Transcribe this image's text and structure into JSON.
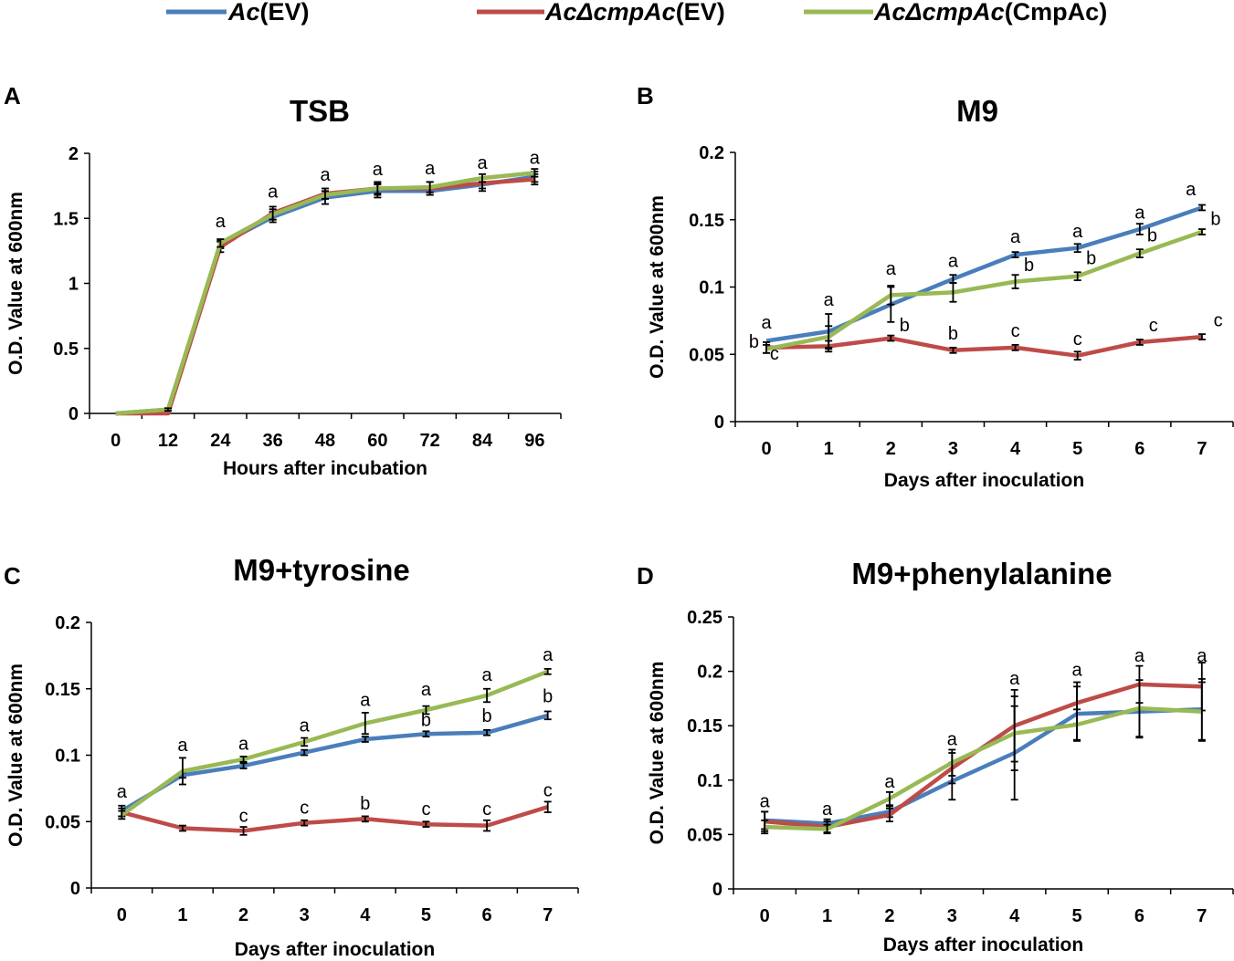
{
  "colors": {
    "blue": "#4a7ebb",
    "red": "#be4b48",
    "green": "#98b954"
  },
  "legend": [
    {
      "prefix": "Ac",
      "suffix": "(EV)",
      "color": "#4a7ebb"
    },
    {
      "prefix": "AcΔcmpAc",
      "suffix": "(EV)",
      "color": "#be4b48"
    },
    {
      "prefix": "AcΔcmpAc",
      "suffix": "(CmpAc)",
      "color": "#98b954"
    }
  ],
  "chart_data": [
    {
      "panel": "A",
      "title": "TSB",
      "type": "line",
      "xlabel": "Hours after incubation",
      "ylabel": "O.D. Value at 600nm",
      "x": [
        0,
        12,
        24,
        36,
        48,
        60,
        72,
        84,
        96
      ],
      "x_ticks": [
        "0",
        "12",
        "24",
        "36",
        "48",
        "60",
        "72",
        "84",
        "96"
      ],
      "ylim": [
        0,
        2
      ],
      "y_ticks": [
        0,
        0.5,
        1,
        1.5,
        2
      ],
      "y_tick_labels": [
        "0",
        "0.5",
        "1",
        "1.5",
        "2"
      ],
      "series": [
        {
          "name": "Ac(EV)",
          "color": "#4a7ebb",
          "values": [
            0,
            0.03,
            1.3,
            1.51,
            1.66,
            1.71,
            1.71,
            1.76,
            1.82
          ],
          "errors": [
            0,
            0.01,
            0.03,
            0.04,
            0.05,
            0.05,
            0.03,
            0.05,
            0.04
          ]
        },
        {
          "name": "AcΔcmpAc(EV)",
          "color": "#be4b48",
          "values": [
            0,
            0,
            1.28,
            1.54,
            1.69,
            1.73,
            1.73,
            1.77,
            1.8
          ],
          "errors": [
            0,
            0,
            0.04,
            0.05,
            0.04,
            0.05,
            0.05,
            0.04,
            0.04
          ]
        },
        {
          "name": "AcΔcmpAc(CmpAc)",
          "color": "#98b954",
          "values": [
            0,
            0.03,
            1.31,
            1.53,
            1.68,
            1.73,
            1.74,
            1.81,
            1.85
          ],
          "errors": [
            0,
            0.01,
            0.03,
            0.04,
            0.03,
            0.04,
            0.04,
            0.03,
            0.03
          ]
        }
      ],
      "annotations": [
        {
          "x": 24,
          "y": 1.43,
          "text": "a"
        },
        {
          "x": 36,
          "y": 1.66,
          "text": "a"
        },
        {
          "x": 48,
          "y": 1.79,
          "text": "a"
        },
        {
          "x": 60,
          "y": 1.83,
          "text": "a"
        },
        {
          "x": 72,
          "y": 1.84,
          "text": "a"
        },
        {
          "x": 84,
          "y": 1.88,
          "text": "a"
        },
        {
          "x": 96,
          "y": 1.92,
          "text": "a"
        }
      ]
    },
    {
      "panel": "B",
      "title": "M9",
      "type": "line",
      "xlabel": "Days after inoculation",
      "ylabel": "O.D. Value at 600nm",
      "x": [
        0,
        1,
        2,
        3,
        4,
        5,
        6,
        7
      ],
      "x_ticks": [
        "0",
        "1",
        "2",
        "3",
        "4",
        "5",
        "6",
        "7"
      ],
      "ylim": [
        0,
        0.2
      ],
      "y_ticks": [
        0,
        0.05,
        0.1,
        0.15,
        0.2
      ],
      "y_tick_labels": [
        "0",
        "0.05",
        "0.1",
        "0.15",
        "0.2"
      ],
      "series": [
        {
          "name": "Ac(EV)",
          "color": "#4a7ebb",
          "values": [
            0.06,
            0.067,
            0.087,
            0.106,
            0.124,
            0.129,
            0.143,
            0.159
          ],
          "errors": [
            0,
            0.013,
            0.013,
            0.003,
            0.002,
            0.003,
            0.004,
            0.002
          ]
        },
        {
          "name": "AcΔcmpAc(EV)",
          "color": "#be4b48",
          "values": [
            0.055,
            0.056,
            0.062,
            0.053,
            0.055,
            0.049,
            0.059,
            0.063
          ],
          "errors": [
            0.004,
            0.004,
            0.002,
            0.002,
            0.002,
            0.003,
            0.002,
            0.002
          ]
        },
        {
          "name": "AcΔcmpAc(CmpAc)",
          "color": "#98b954",
          "values": [
            0.054,
            0.063,
            0.094,
            0.096,
            0.104,
            0.108,
            0.125,
            0.141
          ],
          "errors": [
            0.003,
            0.008,
            0.007,
            0.007,
            0.005,
            0.003,
            0.003,
            0.002
          ]
        }
      ],
      "annotations": [
        {
          "x": 0,
          "y": 0.069,
          "text": "a"
        },
        {
          "x": -0.2,
          "y": 0.055,
          "text": "b"
        },
        {
          "x": 0.13,
          "y": 0.046,
          "text": "c"
        },
        {
          "x": 1,
          "y": 0.086,
          "text": "a"
        },
        {
          "x": 2,
          "y": 0.109,
          "text": "a"
        },
        {
          "x": 2.22,
          "y": 0.067,
          "text": "b"
        },
        {
          "x": 3,
          "y": 0.115,
          "text": "a"
        },
        {
          "x": 3,
          "y": 0.061,
          "text": "b"
        },
        {
          "x": 4,
          "y": 0.133,
          "text": "a"
        },
        {
          "x": 4.22,
          "y": 0.112,
          "text": "b"
        },
        {
          "x": 4,
          "y": 0.063,
          "text": "c"
        },
        {
          "x": 5,
          "y": 0.137,
          "text": "a"
        },
        {
          "x": 5.22,
          "y": 0.117,
          "text": "b"
        },
        {
          "x": 5,
          "y": 0.057,
          "text": "c"
        },
        {
          "x": 6,
          "y": 0.151,
          "text": "a"
        },
        {
          "x": 6.2,
          "y": 0.134,
          "text": "b"
        },
        {
          "x": 6.22,
          "y": 0.067,
          "text": "c"
        },
        {
          "x": 6.82,
          "y": 0.168,
          "text": "a"
        },
        {
          "x": 7.22,
          "y": 0.146,
          "text": "b"
        },
        {
          "x": 7.26,
          "y": 0.071,
          "text": "c"
        }
      ]
    },
    {
      "panel": "C",
      "title": "M9+tyrosine",
      "type": "line",
      "xlabel": "Days after inoculation",
      "ylabel": "O.D. Value at 600nm",
      "x": [
        0,
        1,
        2,
        3,
        4,
        5,
        6,
        7
      ],
      "x_ticks": [
        "0",
        "1",
        "2",
        "3",
        "4",
        "5",
        "6",
        "7"
      ],
      "ylim": [
        0,
        0.2
      ],
      "y_ticks": [
        0,
        0.05,
        0.1,
        0.15,
        0.2
      ],
      "y_tick_labels": [
        "0",
        "0.05",
        "0.1",
        "0.15",
        "0.2"
      ],
      "series": [
        {
          "name": "Ac(EV)",
          "color": "#4a7ebb",
          "values": [
            0.058,
            0.085,
            0.092,
            0.102,
            0.112,
            0.116,
            0.117,
            0.13
          ],
          "errors": [
            0.004,
            0.002,
            0.002,
            0.002,
            0.002,
            0.002,
            0.002,
            0.003
          ]
        },
        {
          "name": "AcΔcmpAc(EV)",
          "color": "#be4b48",
          "values": [
            0.057,
            0.045,
            0.043,
            0.049,
            0.052,
            0.048,
            0.047,
            0.061
          ],
          "errors": [
            0.003,
            0.002,
            0.003,
            0.002,
            0.002,
            0.002,
            0.004,
            0.004
          ]
        },
        {
          "name": "AcΔcmpAc(CmpAc)",
          "color": "#98b954",
          "values": [
            0.055,
            0.088,
            0.097,
            0.11,
            0.124,
            0.134,
            0.145,
            0.163
          ],
          "errors": [
            0.003,
            0.01,
            0.002,
            0.003,
            0.008,
            0.003,
            0.005,
            0.002
          ]
        }
      ],
      "annotations": [
        {
          "x": 0,
          "y": 0.068,
          "text": "a"
        },
        {
          "x": 1,
          "y": 0.103,
          "text": "a"
        },
        {
          "x": 2,
          "y": 0.104,
          "text": "a"
        },
        {
          "x": 2,
          "y": 0.05,
          "text": "c"
        },
        {
          "x": 3,
          "y": 0.118,
          "text": "a"
        },
        {
          "x": 3,
          "y": 0.056,
          "text": "c"
        },
        {
          "x": 4,
          "y": 0.137,
          "text": "a"
        },
        {
          "x": 4,
          "y": 0.059,
          "text": "b"
        },
        {
          "x": 5,
          "y": 0.145,
          "text": "a"
        },
        {
          "x": 5,
          "y": 0.122,
          "text": "b"
        },
        {
          "x": 5,
          "y": 0.055,
          "text": "c"
        },
        {
          "x": 6,
          "y": 0.156,
          "text": "a"
        },
        {
          "x": 6,
          "y": 0.125,
          "text": "b"
        },
        {
          "x": 6,
          "y": 0.055,
          "text": "c"
        },
        {
          "x": 7,
          "y": 0.171,
          "text": "a"
        },
        {
          "x": 7,
          "y": 0.14,
          "text": "b"
        },
        {
          "x": 7,
          "y": 0.069,
          "text": "c"
        }
      ]
    },
    {
      "panel": "D",
      "title": "M9+phenylalanine",
      "type": "line",
      "xlabel": "Days after inoculation",
      "ylabel": "O.D. Value at 600nm",
      "x": [
        0,
        1,
        2,
        3,
        4,
        5,
        6,
        7
      ],
      "x_ticks": [
        "0",
        "1",
        "2",
        "3",
        "4",
        "5",
        "6",
        "7"
      ],
      "ylim": [
        0,
        0.25
      ],
      "y_ticks": [
        0,
        0.05,
        0.1,
        0.15,
        0.2,
        0.25
      ],
      "y_tick_labels": [
        "0",
        "0.05",
        "0.1",
        "0.15",
        "0.2",
        "0.25"
      ],
      "series": [
        {
          "name": "Ac(EV)",
          "color": "#4a7ebb",
          "values": [
            0.063,
            0.06,
            0.071,
            0.099,
            0.125,
            0.161,
            0.163,
            0.165
          ],
          "errors": [
            0.008,
            0.004,
            0.005,
            0.017,
            0.043,
            0.025,
            0.024,
            0.028
          ]
        },
        {
          "name": "AcΔcmpAc(EV)",
          "color": "#be4b48",
          "values": [
            0.062,
            0.057,
            0.068,
            0.111,
            0.15,
            0.171,
            0.188,
            0.186
          ],
          "errors": [
            0.009,
            0.005,
            0.006,
            0.014,
            0.033,
            0.019,
            0.017,
            0.022
          ]
        },
        {
          "name": "AcΔcmpAc(CmpAc)",
          "color": "#98b954",
          "values": [
            0.057,
            0.055,
            0.083,
            0.116,
            0.143,
            0.151,
            0.166,
            0.163
          ],
          "errors": [
            0.006,
            0.004,
            0.006,
            0.012,
            0.034,
            0.014,
            0.026,
            0.027
          ]
        }
      ],
      "annotations": [
        {
          "x": 0,
          "y": 0.075,
          "text": "a"
        },
        {
          "x": 1,
          "y": 0.068,
          "text": "a"
        },
        {
          "x": 2,
          "y": 0.093,
          "text": "a"
        },
        {
          "x": 3,
          "y": 0.132,
          "text": "a"
        },
        {
          "x": 4,
          "y": 0.188,
          "text": "a"
        },
        {
          "x": 5,
          "y": 0.196,
          "text": "a"
        },
        {
          "x": 6,
          "y": 0.209,
          "text": "a"
        },
        {
          "x": 7,
          "y": 0.209,
          "text": "a"
        }
      ]
    }
  ]
}
